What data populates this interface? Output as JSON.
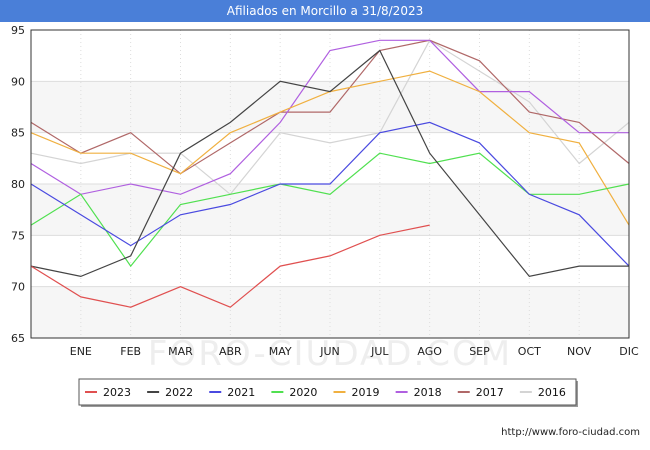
{
  "header": {
    "title": "Afiliados en Morcillo a 31/8/2023"
  },
  "footer": {
    "url": "http://www.foro-ciudad.com"
  },
  "watermark": {
    "text": "FORO-CIUDAD.COM"
  },
  "chart_data": {
    "type": "line",
    "title": "Afiliados en Morcillo a 31/8/2023",
    "xlabel": "",
    "ylabel": "",
    "categories": [
      "",
      "ENE",
      "FEB",
      "MAR",
      "ABR",
      "MAY",
      "JUN",
      "JUL",
      "AGO",
      "SEP",
      "OCT",
      "NOV",
      "DIC"
    ],
    "ylim": [
      65,
      95
    ],
    "yticks": [
      65,
      70,
      75,
      80,
      85,
      90,
      95
    ],
    "grid": true,
    "legend_position": "bottom",
    "series": [
      {
        "name": "2023",
        "color": "#e05050",
        "values": [
          72,
          69,
          68,
          70,
          68,
          72,
          73,
          75,
          76,
          null,
          null,
          null,
          null
        ]
      },
      {
        "name": "2022",
        "color": "#444444",
        "values": [
          72,
          71,
          73,
          83,
          86,
          90,
          89,
          93,
          83,
          77,
          71,
          72,
          72
        ]
      },
      {
        "name": "2021",
        "color": "#4a4ae0",
        "values": [
          80,
          77,
          74,
          77,
          78,
          80,
          80,
          85,
          86,
          84,
          79,
          77,
          72
        ]
      },
      {
        "name": "2020",
        "color": "#50e050",
        "values": [
          76,
          79,
          72,
          78,
          79,
          80,
          79,
          83,
          82,
          83,
          79,
          79,
          80
        ]
      },
      {
        "name": "2019",
        "color": "#f0b040",
        "values": [
          85,
          83,
          83,
          81,
          85,
          87,
          89,
          90,
          91,
          89,
          85,
          84,
          76
        ]
      },
      {
        "name": "2018",
        "color": "#b060e0",
        "values": [
          82,
          79,
          80,
          79,
          81,
          86,
          93,
          94,
          94,
          89,
          89,
          85,
          85
        ]
      },
      {
        "name": "2017",
        "color": "#b06868",
        "values": [
          86,
          83,
          85,
          81,
          84,
          87,
          87,
          93,
          94,
          92,
          87,
          86,
          82
        ]
      },
      {
        "name": "2016",
        "color": "#d4d4d4",
        "values": [
          83,
          82,
          83,
          83,
          79,
          85,
          84,
          85,
          94,
          91,
          88,
          82,
          86
        ]
      }
    ]
  }
}
